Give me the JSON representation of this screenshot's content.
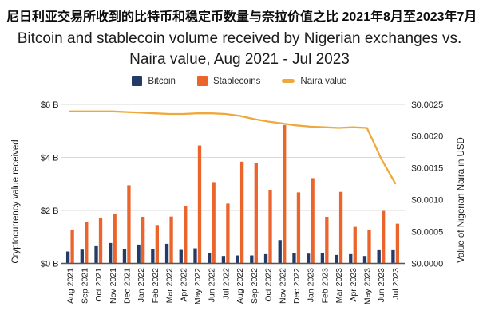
{
  "title_zh": "尼日利亚交易所收到的比特币和稳定币数量与奈拉价值之比 2021年8月至2023年7月",
  "title_en": {
    "line1": "Bitcoin and stablecoin volume received by Nigerian exchanges vs.",
    "line2": "Naira value, Aug 2021 - Jul 2023"
  },
  "legend": {
    "items": [
      {
        "label": "Bitcoin",
        "color": "#243a67",
        "swatch": "square"
      },
      {
        "label": "Stablecoins",
        "color": "#ea642c",
        "swatch": "square"
      },
      {
        "label": "Naira value",
        "color": "#efa83b",
        "swatch": "line"
      }
    ]
  },
  "chart_data": {
    "type": "bar+line",
    "title": "Bitcoin and stablecoin volume received by Nigerian exchanges vs. Naira value, Aug 2021 - Jul 2023",
    "title_zh": "尼日利亚交易所收到的比特币和稳定币数量与奈拉价值之比 2021年8月至2023年7月",
    "categories": [
      "Aug 2021",
      "Sep 2021",
      "Oct 2021",
      "Nov 2021",
      "Dec 2021",
      "Jan 2022",
      "Feb 2022",
      "Mar 2022",
      "Apr 2022",
      "May 2022",
      "Jun 2022",
      "Jul 2022",
      "Aug 2022",
      "Sep 2022",
      "Oct 2022",
      "Nov 2022",
      "Dec 2022",
      "Jan 2023",
      "Feb 2023",
      "Mar 2023",
      "Apr 2023",
      "May 2023",
      "Jun 2023",
      "Jul 2023"
    ],
    "series": [
      {
        "name": "Bitcoin",
        "type": "bar",
        "axis": "left",
        "color": "#243a67",
        "unit": "$B",
        "values": [
          0.45,
          0.52,
          0.65,
          0.77,
          0.54,
          0.71,
          0.55,
          0.74,
          0.51,
          0.57,
          0.4,
          0.28,
          0.3,
          0.3,
          0.35,
          0.88,
          0.4,
          0.37,
          0.4,
          0.32,
          0.35,
          0.28,
          0.5,
          0.5
        ]
      },
      {
        "name": "Stablecoins",
        "type": "bar",
        "axis": "left",
        "color": "#ea642c",
        "unit": "$B",
        "values": [
          1.28,
          1.58,
          1.73,
          1.86,
          2.95,
          1.76,
          1.45,
          1.77,
          2.15,
          4.45,
          3.07,
          2.26,
          3.84,
          3.79,
          2.77,
          5.22,
          2.68,
          3.22,
          1.76,
          2.7,
          1.38,
          1.26,
          1.98,
          1.5
        ]
      },
      {
        "name": "Naira value",
        "type": "line",
        "axis": "right",
        "color": "#efa83b",
        "unit": "USD per NGN",
        "values": [
          0.00239,
          0.00239,
          0.00239,
          0.00239,
          0.00238,
          0.00237,
          0.00236,
          0.00235,
          0.00235,
          0.00236,
          0.00236,
          0.00235,
          0.00232,
          0.00227,
          0.00223,
          0.0022,
          0.00217,
          0.00215,
          0.00214,
          0.00213,
          0.00214,
          0.00213,
          0.00165,
          0.00126
        ]
      }
    ],
    "left_axis": {
      "label": "Cryptocurrency value received",
      "min": 0,
      "max": 6,
      "ticks": [
        "$0 B",
        "$2 B",
        "$4 B",
        "$6 B"
      ]
    },
    "right_axis": {
      "label": "Value of Nigerian Naira in USD",
      "min": 0,
      "max": 0.0025,
      "ticks": [
        "$0.0000",
        "$0.0005",
        "$0.0010",
        "$0.0015",
        "$0.0020",
        "$0.0025"
      ]
    },
    "grid": "horizontal-only",
    "legend_position": "top-center",
    "colors": {
      "gridline": "#d9d9d9",
      "baseline": "#565656",
      "text": "#1a1a1a"
    }
  }
}
